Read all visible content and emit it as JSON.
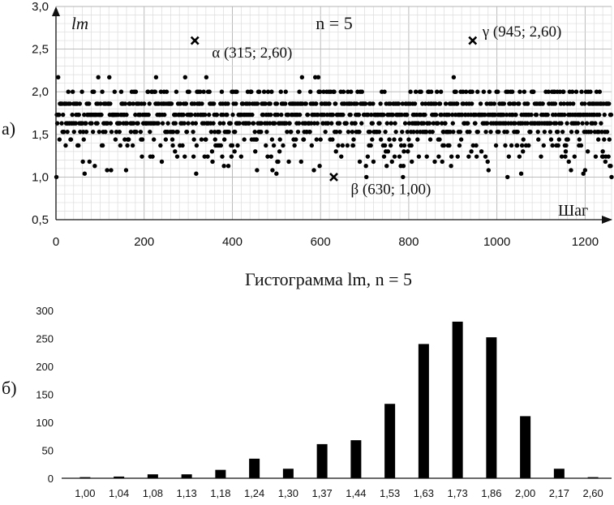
{
  "chart_data": [
    {
      "type": "scatter",
      "panel_label": "а)",
      "title": "n = 5",
      "ylabel": "lm",
      "xlabel": "Шаг",
      "xlim": [
        0,
        1260
      ],
      "ylim": [
        0.5,
        3.0
      ],
      "xticks": [
        "0",
        "200",
        "400",
        "600",
        "800",
        "1000",
        "1200"
      ],
      "xtick_values": [
        0,
        200,
        400,
        600,
        800,
        1000,
        1200
      ],
      "yticks": [
        "0,5",
        "1,0",
        "1,5",
        "2,0",
        "2,5",
        "3,0"
      ],
      "ytick_values": [
        0.5,
        1.0,
        1.5,
        2.0,
        2.5,
        3.0
      ],
      "grid": true,
      "levels": [
        1.0,
        1.04,
        1.08,
        1.13,
        1.18,
        1.24,
        1.3,
        1.37,
        1.44,
        1.53,
        1.63,
        1.73,
        1.86,
        2.0,
        2.17
      ],
      "level_weights": [
        3,
        4,
        7,
        7,
        15,
        35,
        17,
        61,
        68,
        133,
        240,
        280,
        252,
        111,
        17
      ],
      "n_points": 1260,
      "annotations": [
        {
          "marker": "x",
          "x": 315,
          "y": 2.6,
          "text": "α (315; 2,60)",
          "position": "below-right"
        },
        {
          "marker": "x",
          "x": 630,
          "y": 1.0,
          "text": "β (630; 1,00)",
          "position": "below-right"
        },
        {
          "marker": "x",
          "x": 945,
          "y": 2.6,
          "text": "γ (945; 2,60)",
          "position": "right"
        }
      ]
    },
    {
      "type": "bar",
      "panel_label": "б)",
      "title": "Гистограмма lm, n = 5",
      "categories": [
        "1,00",
        "1,04",
        "1,08",
        "1,13",
        "1,18",
        "1,24",
        "1,30",
        "1,37",
        "1,44",
        "1,53",
        "1,63",
        "1,73",
        "1,86",
        "2,00",
        "2,17",
        "2,60"
      ],
      "values": [
        2,
        3,
        7,
        7,
        15,
        35,
        17,
        61,
        68,
        133,
        240,
        280,
        252,
        111,
        17,
        2
      ],
      "ylim": [
        0,
        300
      ],
      "yticks": [
        "0",
        "50",
        "100",
        "150",
        "200",
        "250",
        "300"
      ],
      "ytick_values": [
        0,
        50,
        100,
        150,
        200,
        250,
        300
      ],
      "grid": false,
      "bar_color": "#000000"
    }
  ],
  "colors": {
    "marker": "#000000",
    "grid_major": "#b4b4b4",
    "grid_minor": "#dcdcdc",
    "axis": "#111111"
  }
}
